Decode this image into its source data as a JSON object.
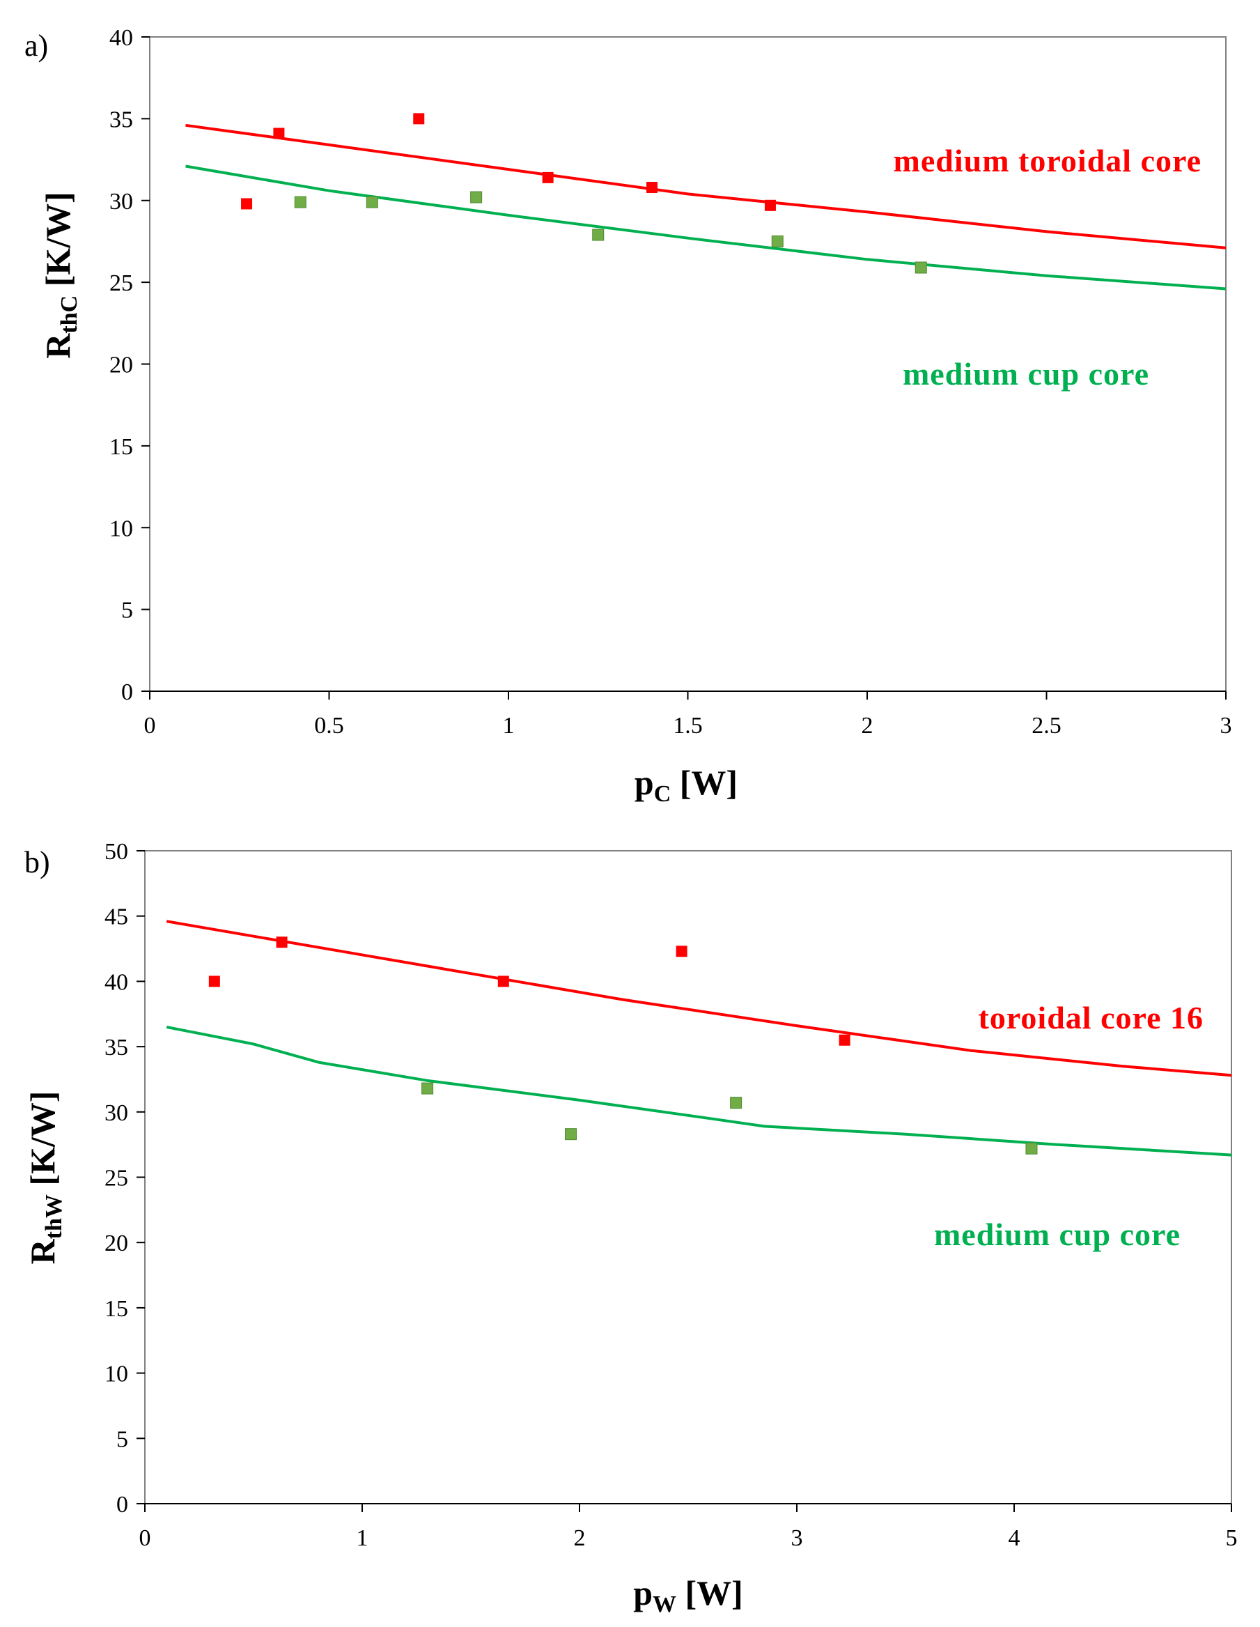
{
  "colors": {
    "toroidal": "#ff0000",
    "cup_line": "#00b050",
    "cup_marker": "#70ad47",
    "axis": "#000000",
    "plot_border": "#808080"
  },
  "chart_data": [
    {
      "panel": "a)",
      "type": "scatter",
      "xlabel": {
        "main": "p",
        "sub": "C",
        "unit": " [W]"
      },
      "ylabel": {
        "main": "R",
        "sub": "thC",
        "unit": " [K/W]"
      },
      "xlim": [
        0,
        3
      ],
      "ylim": [
        0,
        40
      ],
      "xticks": [
        0,
        0.5,
        1,
        1.5,
        2,
        2.5,
        3
      ],
      "xtick_labels": [
        "0",
        "0.5",
        "1",
        "1.5",
        "2",
        "2.5",
        "3"
      ],
      "yticks": [
        0,
        5,
        10,
        15,
        20,
        25,
        30,
        35,
        40
      ],
      "ytick_labels": [
        "0",
        "5",
        "10",
        "15",
        "20",
        "25",
        "30",
        "35",
        "40"
      ],
      "series": [
        {
          "name": "medium toroidal core",
          "color_key": "toroidal",
          "markers": [
            [
              0.27,
              29.8
            ],
            [
              0.36,
              34.1
            ],
            [
              0.75,
              35.0
            ],
            [
              1.11,
              31.4
            ],
            [
              1.4,
              30.8
            ],
            [
              1.73,
              29.7
            ]
          ],
          "curve": [
            [
              0.1,
              34.6
            ],
            [
              0.5,
              33.4
            ],
            [
              1.0,
              31.9
            ],
            [
              1.5,
              30.4
            ],
            [
              2.0,
              29.3
            ],
            [
              2.5,
              28.1
            ],
            [
              3.0,
              27.1
            ]
          ]
        },
        {
          "name": "medium cup core",
          "color_key": "cup",
          "markers": [
            [
              0.42,
              29.9
            ],
            [
              0.62,
              29.9
            ],
            [
              0.91,
              30.2
            ],
            [
              1.25,
              27.9
            ],
            [
              1.75,
              27.5
            ],
            [
              2.15,
              25.9
            ]
          ],
          "curve": [
            [
              0.1,
              32.1
            ],
            [
              0.5,
              30.6
            ],
            [
              1.0,
              29.1
            ],
            [
              1.5,
              27.7
            ],
            [
              2.0,
              26.4
            ],
            [
              2.5,
              25.4
            ],
            [
              3.0,
              24.6
            ]
          ]
        }
      ],
      "annotations": [
        {
          "text": "medium toroidal core",
          "color_key": "toroidal"
        },
        {
          "text": "medium cup core",
          "color_key": "cup"
        }
      ]
    },
    {
      "panel": "b)",
      "type": "scatter",
      "xlabel": {
        "main": "p",
        "sub": "W",
        "unit": " [W]"
      },
      "ylabel": {
        "main": "R",
        "sub": "thW",
        "unit": " [K/W]"
      },
      "xlim": [
        0,
        5
      ],
      "ylim": [
        0,
        50
      ],
      "xticks": [
        0,
        1,
        2,
        3,
        4,
        5
      ],
      "xtick_labels": [
        "0",
        "1",
        "2",
        "3",
        "4",
        "5"
      ],
      "yticks": [
        0,
        5,
        10,
        15,
        20,
        25,
        30,
        35,
        40,
        45,
        50
      ],
      "ytick_labels": [
        "0",
        "5",
        "10",
        "15",
        "20",
        "25",
        "30",
        "35",
        "40",
        "45",
        "50"
      ],
      "series": [
        {
          "name": "toroidal core 16",
          "color_key": "toroidal",
          "markers": [
            [
              0.32,
              40.0
            ],
            [
              0.63,
              43.0
            ],
            [
              1.65,
              40.0
            ],
            [
              2.47,
              42.3
            ],
            [
              3.22,
              35.5
            ]
          ],
          "curve": [
            [
              0.1,
              44.6
            ],
            [
              0.8,
              42.6
            ],
            [
              1.5,
              40.6
            ],
            [
              2.2,
              38.6
            ],
            [
              3.0,
              36.6
            ],
            [
              3.8,
              34.7
            ],
            [
              4.5,
              33.5
            ],
            [
              5.0,
              32.8
            ]
          ]
        },
        {
          "name": "medium cup core",
          "color_key": "cup",
          "markers": [
            [
              1.3,
              31.8
            ],
            [
              1.96,
              28.3
            ],
            [
              2.72,
              30.7
            ],
            [
              4.08,
              27.2
            ]
          ],
          "curve": [
            [
              0.1,
              36.5
            ],
            [
              0.5,
              35.2
            ],
            [
              0.8,
              33.8
            ],
            [
              1.3,
              32.4
            ],
            [
              2.0,
              30.9
            ],
            [
              2.6,
              29.5
            ],
            [
              2.85,
              28.9
            ],
            [
              3.5,
              28.3
            ],
            [
              4.2,
              27.5
            ],
            [
              5.0,
              26.7
            ]
          ]
        }
      ],
      "annotations": [
        {
          "text": "toroidal core 16",
          "color_key": "toroidal"
        },
        {
          "text": "medium cup core",
          "color_key": "cup"
        }
      ]
    }
  ]
}
